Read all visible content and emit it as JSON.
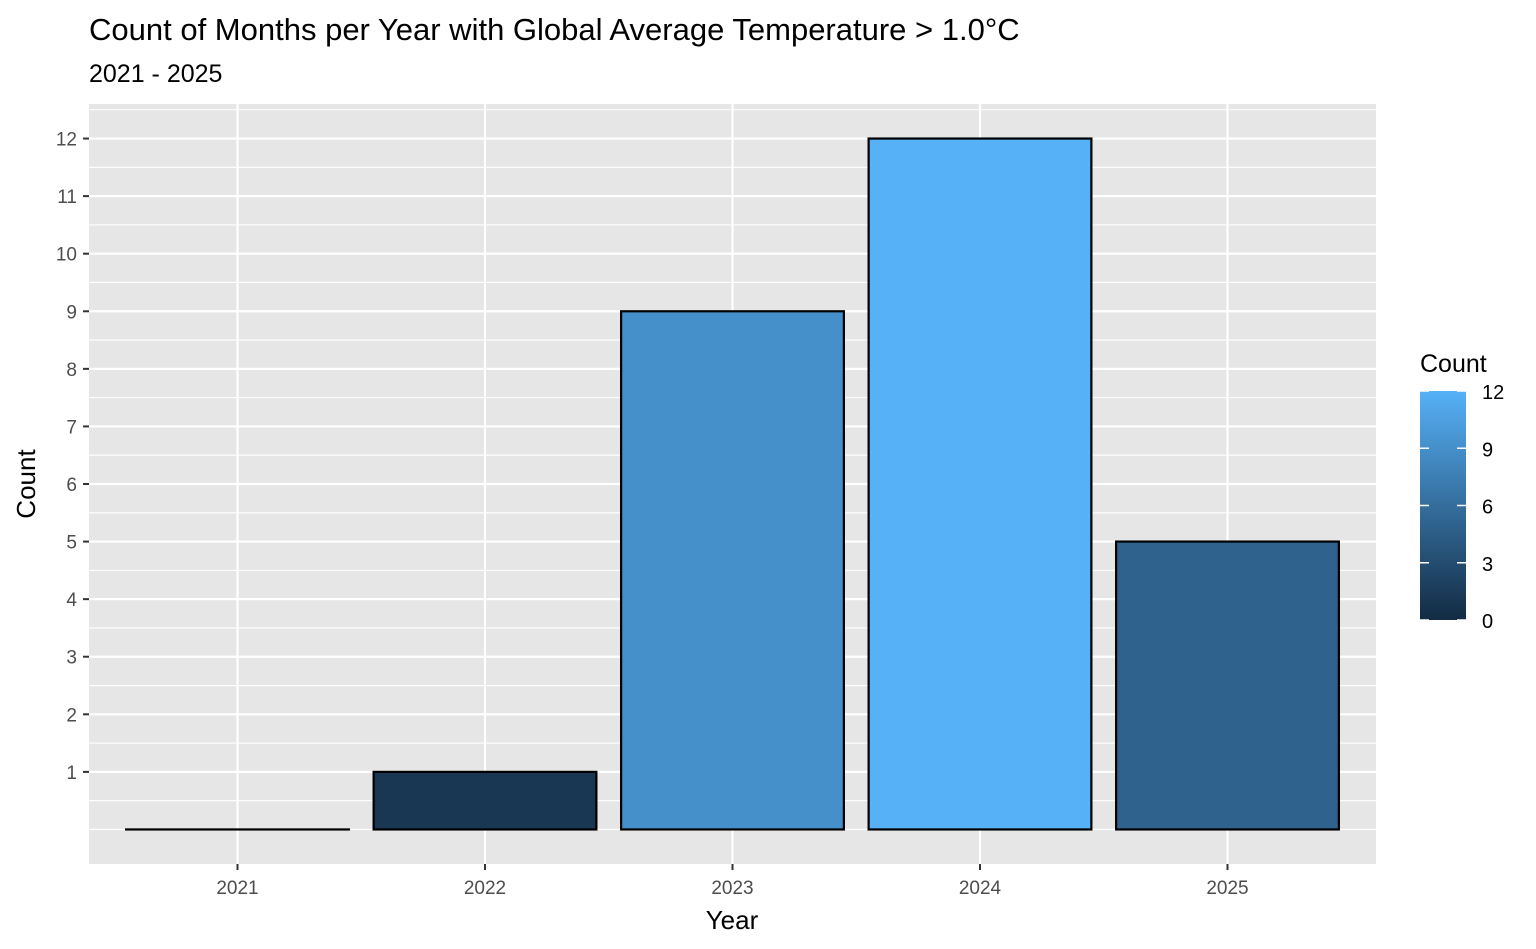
{
  "chart_data": {
    "type": "bar",
    "title": "Count of Months per Year with Global Average Temperature > 1.0°C",
    "subtitle": "2021 - 2025",
    "xlabel": "Year",
    "ylabel": "Count",
    "categories": [
      "2021",
      "2022",
      "2023",
      "2024",
      "2025"
    ],
    "values": [
      0,
      1,
      9,
      12,
      5
    ],
    "ylim": [
      -0.6,
      12.6
    ],
    "yticks": [
      1,
      2,
      3,
      4,
      5,
      6,
      7,
      8,
      9,
      10,
      11,
      12
    ],
    "grid": true,
    "legend": {
      "title": "Count",
      "placement": "right",
      "ticks": [
        0,
        3,
        6,
        9,
        12
      ],
      "color_low": "#132b43",
      "color_high": "#56b1f7"
    },
    "colors": {
      "panel_background": "#e6e6e6",
      "grid_line": "#ffffff",
      "bar_outline": "#000000"
    }
  }
}
